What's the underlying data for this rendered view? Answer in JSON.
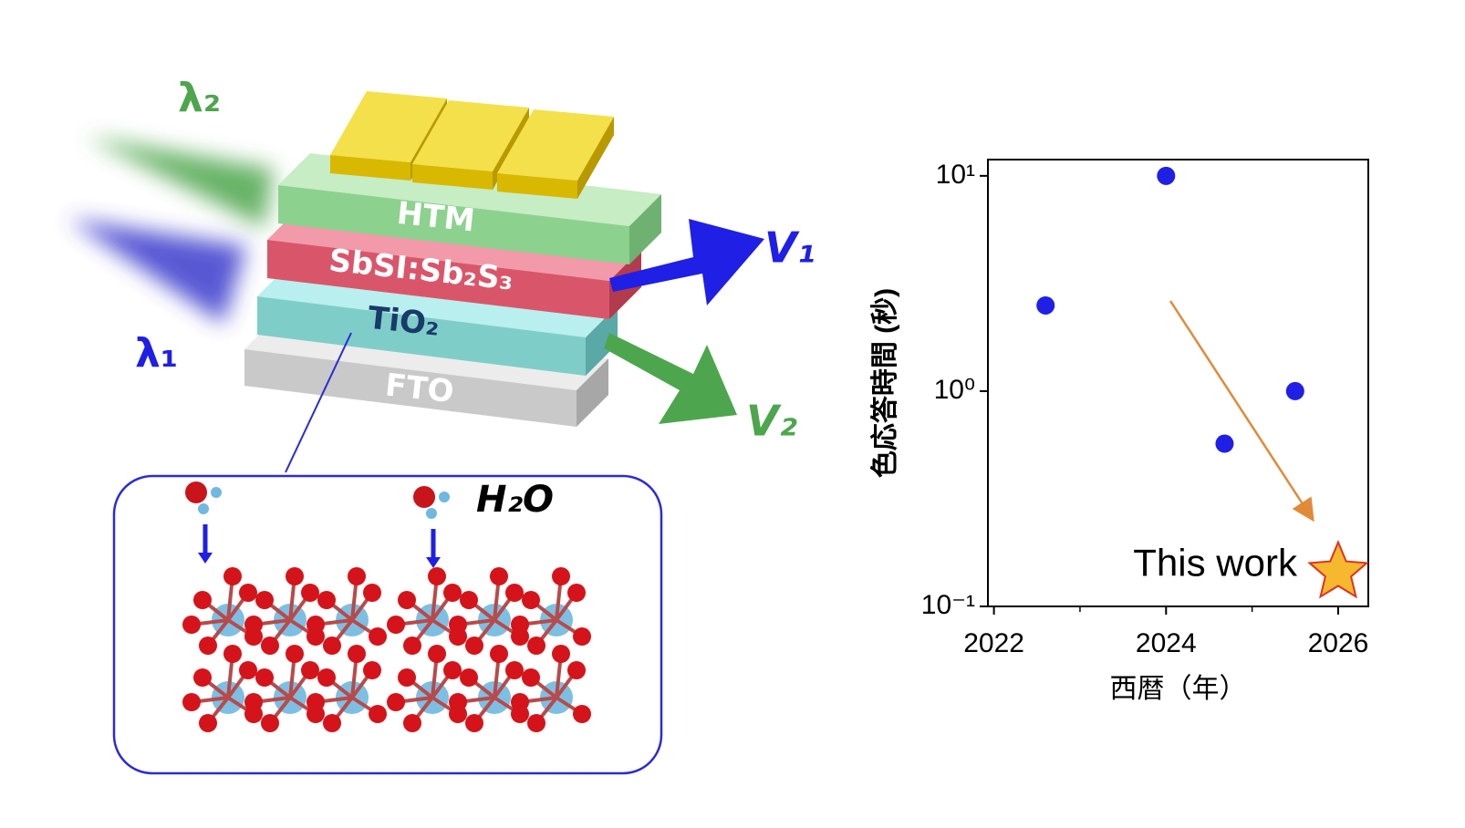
{
  "diagram": {
    "beams": [
      "λ₂",
      "λ₁"
    ],
    "layers": [
      "HTM",
      "SbSI:Sb₂S₃",
      "TiO₂",
      "FTO"
    ],
    "outputs": [
      "V₁",
      "V₂"
    ],
    "inset_label": "H₂O"
  },
  "chart_data": {
    "type": "scatter",
    "xlabel": "西暦（年）",
    "ylabel": "色応答時間 (秒)",
    "xlim": [
      2021.93,
      2026.35
    ],
    "xticks": [
      2022,
      2024,
      2026
    ],
    "xminorticks": [
      2023,
      2025
    ],
    "ylim": [
      0.1,
      11.9
    ],
    "log_y": true,
    "yticks": [
      {
        "value": 10,
        "label": "10¹"
      },
      {
        "value": 1,
        "label": "10⁰"
      },
      {
        "value": 0.1,
        "label": "10⁻¹"
      }
    ],
    "series": [
      {
        "marker": "circle",
        "color": "#1f1fe6",
        "x": [
          2022.6,
          2024,
          2024.68,
          2025.5
        ],
        "values": [
          2.5,
          10,
          0.57,
          1.0
        ]
      },
      {
        "name": "This work",
        "marker": "star",
        "color": "#f5b82e",
        "x": [
          2026
        ],
        "values": [
          0.144
        ]
      }
    ]
  }
}
